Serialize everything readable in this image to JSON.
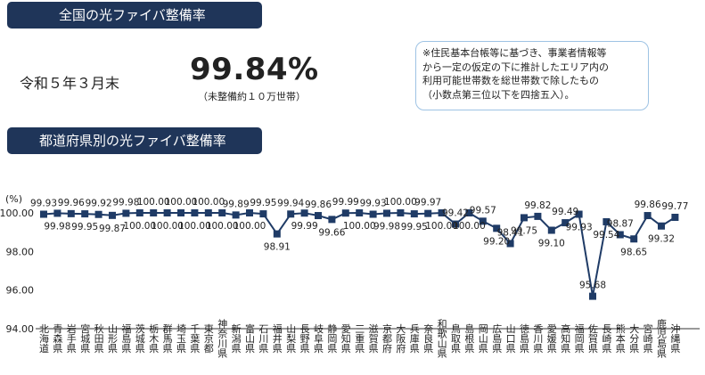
{
  "header": {
    "title": "全国の光ファイバ整備率",
    "date_label": "令和５年３月末",
    "value": "99.84%",
    "value_sub": "（未整備約１０万世帯）"
  },
  "note": "※住民基本台帳等に基づき、事業者情報等\nから一定の仮定の下に推計したエリア内の\n利用可能世帯数を総世帯数で除したもの\n（小数点第三位以下を四捨五入）。",
  "section": {
    "title": "都道府県別の光ファイバ整備率"
  },
  "colors": {
    "header_bg": "#1f3559",
    "line": "#1f3b66",
    "marker": "#1f3b66",
    "note_border": "#9ec3e4"
  },
  "chart_data": {
    "type": "line",
    "ylabel": "(%)",
    "ylim": [
      94.0,
      100.0
    ],
    "yticks": [
      "100.00",
      "98.00",
      "96.00",
      "94.00"
    ],
    "categories": [
      "北海道",
      "青森県",
      "岩手県",
      "宮城県",
      "秋田県",
      "山形県",
      "福島県",
      "茨城県",
      "栃木県",
      "群馬県",
      "埼玉県",
      "千葉県",
      "東京都",
      "神奈川県",
      "新潟県",
      "富山県",
      "石川県",
      "福井県",
      "山梨県",
      "長野県",
      "岐阜県",
      "静岡県",
      "愛知県",
      "三重県",
      "滋賀県",
      "京都府",
      "大阪府",
      "兵庫県",
      "奈良県",
      "和歌山県",
      "鳥取県",
      "島根県",
      "岡山県",
      "広島県",
      "山口県",
      "徳島県",
      "香川県",
      "愛媛県",
      "高知県",
      "福岡県",
      "佐賀県",
      "長崎県",
      "熊本県",
      "大分県",
      "宮崎県",
      "鹿児島県",
      "沖縄県"
    ],
    "values": [
      99.93,
      99.98,
      99.96,
      99.95,
      99.92,
      99.87,
      99.98,
      100.0,
      100.0,
      100.0,
      100.0,
      100.0,
      100.0,
      100.0,
      99.89,
      100.0,
      99.95,
      98.91,
      99.94,
      99.99,
      99.86,
      99.66,
      99.99,
      100.0,
      99.93,
      99.98,
      100.0,
      99.95,
      99.97,
      100.0,
      99.42,
      100.0,
      99.57,
      99.2,
      98.41,
      99.75,
      99.82,
      99.1,
      99.49,
      99.93,
      95.68,
      99.54,
      98.87,
      98.65,
      99.86,
      99.32,
      99.77
    ],
    "labels": [
      "99.93",
      "99.98",
      "99.96",
      "99.95",
      "99.92",
      "99.87",
      "99.98",
      "100.00",
      "100.00",
      "100.00",
      "100.00",
      "100.00",
      "100.00",
      "100.00",
      "99.89",
      "100.00",
      "99.95",
      "98.91",
      "99.94",
      "99.99",
      "99.86",
      "99.66",
      "99.99",
      "100.00",
      "99.93",
      "99.98",
      "100.00",
      "99.95",
      "99.97",
      "100.00",
      "99.42",
      "100.00",
      "99.57",
      "99.20",
      "98.41",
      "99.75",
      "99.82",
      "99.10",
      "99.49",
      "99.93",
      "95.68",
      "99.54",
      "98.87",
      "98.65",
      "99.86",
      "99.32",
      "99.77"
    ],
    "grid": false,
    "legend": "none"
  }
}
